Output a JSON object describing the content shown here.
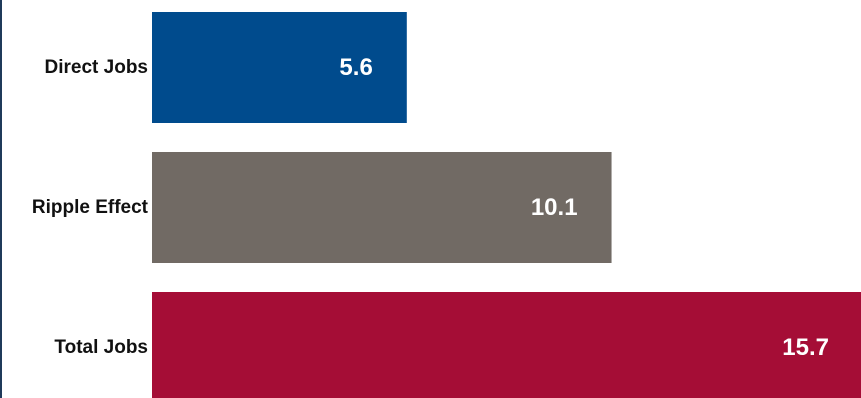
{
  "chart_data": {
    "type": "bar",
    "orientation": "horizontal",
    "title": "",
    "xlabel": "",
    "ylabel": "",
    "categories": [
      "Direct Jobs",
      "Ripple Effect",
      "Total Jobs"
    ],
    "values": [
      5.6,
      10.1,
      15.7
    ],
    "value_labels": [
      "5.6",
      "10.1",
      "15.7"
    ],
    "colors": [
      "#004b8d",
      "#716a64",
      "#a50d36"
    ],
    "value_label_color": "#ffffff",
    "category_label_color": "#111111",
    "grid": false,
    "legend": "none"
  }
}
